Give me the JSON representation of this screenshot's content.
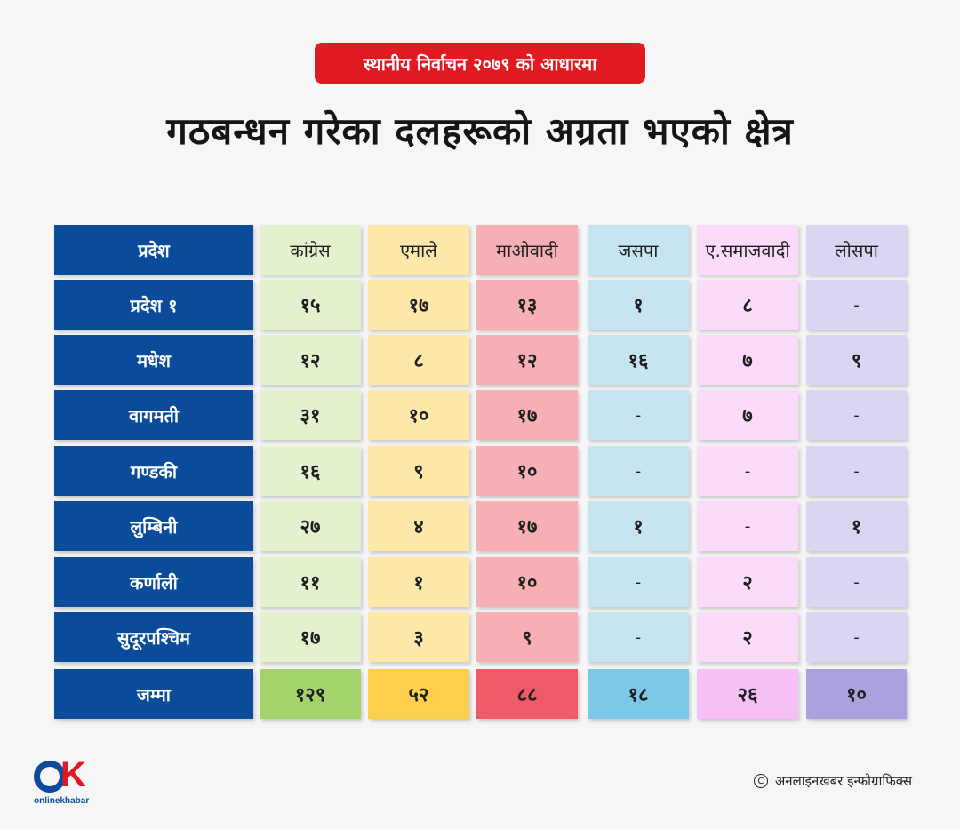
{
  "badge": "स्थानीय निर्वाचन २०७९ को आधारमा",
  "title": "गठबन्धन गरेका दलहरूको अग्रता भएको क्षेत्र",
  "table": {
    "province_header": "प्रदेश",
    "columns": [
      {
        "label": "कांग्रेस",
        "cell_color": "#e3f1cf",
        "total_color": "#a3d46b"
      },
      {
        "label": "एमाले",
        "cell_color": "#fde8a9",
        "total_color": "#fccf4d"
      },
      {
        "label": "माओवादी",
        "cell_color": "#f6b0b5",
        "total_color": "#ee5a68"
      },
      {
        "label": "जसपा",
        "cell_color": "#c7e5f0",
        "total_color": "#7dc8e6"
      },
      {
        "label": "ए.समाजवादी",
        "cell_color": "#fbdbfa",
        "total_color": "#f5c1f4"
      },
      {
        "label": "लोसपा",
        "cell_color": "#d9d6f2",
        "total_color": "#a9a2de"
      }
    ],
    "header_color": "#0a4c9a",
    "rows": [
      {
        "name": "प्रदेश १",
        "values": [
          "१५",
          "१७",
          "१३",
          "१",
          "८",
          "-"
        ]
      },
      {
        "name": "मधेश",
        "values": [
          "१२",
          "८",
          "१२",
          "१६",
          "७",
          "९"
        ]
      },
      {
        "name": "वागमती",
        "values": [
          "३१",
          "१०",
          "१७",
          "-",
          "७",
          "-"
        ]
      },
      {
        "name": "गण्डकी",
        "values": [
          "१६",
          "९",
          "१०",
          "-",
          "-",
          "-"
        ]
      },
      {
        "name": "लुम्बिनी",
        "values": [
          "२७",
          "४",
          "१७",
          "१",
          "-",
          "१"
        ]
      },
      {
        "name": "कर्णाली",
        "values": [
          "११",
          "१",
          "१०",
          "-",
          "२",
          "-"
        ]
      },
      {
        "name": "सुदूरपश्चिम",
        "values": [
          "१७",
          "३",
          "९",
          "-",
          "२",
          "-"
        ]
      }
    ],
    "total": {
      "name": "जम्मा",
      "values": [
        "१२९",
        "५२",
        "८८",
        "१८",
        "२६",
        "१०"
      ]
    }
  },
  "logo_text": "onlinekhabar",
  "credit": "अनलाइनखबर इन्फोग्राफिक्स"
}
